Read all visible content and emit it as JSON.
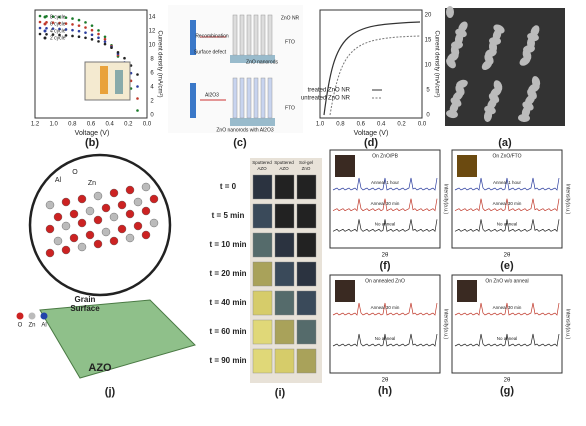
{
  "panel_b": {
    "label": "(b)",
    "legend": [
      "8 cycle",
      "6 cycle",
      "4 cycle",
      "2 cycle"
    ],
    "xticks": [
      "1.2",
      "1.0",
      "0.8",
      "0.6",
      "0.4",
      "0.2",
      "0.0"
    ],
    "yticks": [
      "0",
      "2",
      "4",
      "6",
      "8",
      "10",
      "12",
      "14"
    ],
    "x_label": "Voltage (V)",
    "y_label": "Current density (mA/cm²)"
  },
  "panel_c": {
    "label": "(c)",
    "texts": [
      "ZnO NR",
      "FTO",
      "ZnO nanorods",
      "Recombination",
      "Surface defect",
      "Al2O3",
      "FTO",
      "ZnO nanorods with Al2O3"
    ]
  },
  "panel_d": {
    "label": "(d)",
    "legend": [
      "treated ZnO NR",
      "untreated ZnO NR"
    ],
    "xticks": [
      "1.0",
      "0.8",
      "0.6",
      "0.4",
      "0.2",
      "0.0"
    ],
    "yticks": [
      "0",
      "5",
      "10",
      "15",
      "20"
    ],
    "x_label": "Voltage (V)",
    "y_label": "Current density (mA/cm²)"
  },
  "panel_a": {
    "label": "(a)"
  },
  "xrd": [
    {
      "label": "(f)",
      "title": "On ZnO/PB",
      "lines": [
        "Anneal 1 hour",
        "Anneal 30 min",
        "No anneal"
      ],
      "x_label": "2θ",
      "y_label": "Intensity(a.u.)"
    },
    {
      "label": "(e)",
      "title": "On ZnO/FTO",
      "lines": [
        "Anneal 1 hour",
        "Anneal 30 min",
        "No anneal"
      ],
      "x_label": "2θ",
      "y_label": "Intensity(a.u.)"
    },
    {
      "label": "(h)",
      "title": "On annealed ZnO",
      "lines": [
        "Anneal 30 min",
        "No anneal"
      ],
      "x_label": "2θ",
      "y_label": "Intensity(a.u.)"
    },
    {
      "label": "(g)",
      "title": "On ZnO w/o anneal",
      "lines": [
        "Anneal 30 min",
        "No anneal"
      ],
      "x_label": "2θ",
      "y_label": "Intensity(a.u.)"
    }
  ],
  "panel_i": {
    "label": "(i)",
    "header": [
      "Sputtered",
      "Sputtered",
      "Sol-gel"
    ],
    "columns": [
      "AZO",
      "AZO",
      "ZnO"
    ],
    "times": [
      "t = 0",
      "t = 5 min",
      "t = 10 min",
      "t = 20 min",
      "t = 40 min",
      "t = 60 min",
      "t = 90 min"
    ]
  },
  "panel_j": {
    "label": "(j)",
    "atoms": [
      "Al",
      "O",
      "Zn"
    ],
    "slab": "AZO",
    "surface": [
      "Grain",
      "Surface"
    ],
    "legend": [
      "O",
      "Zn",
      "Al"
    ]
  }
}
